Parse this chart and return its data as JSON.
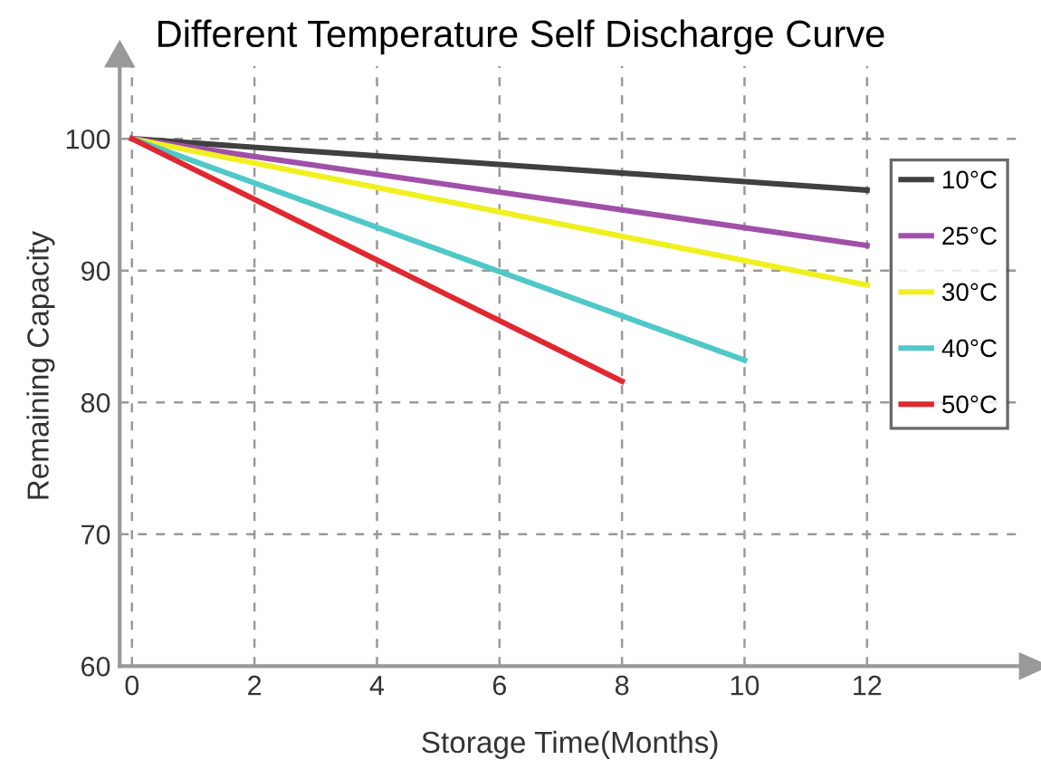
{
  "chart_data": {
    "type": "line",
    "title": "Different Temperature Self Discharge Curve",
    "xlabel": "Storage Time(Months)",
    "ylabel": "Remaining Capacity",
    "xlim": [
      -0.2,
      14.5
    ],
    "ylim": [
      60,
      105.5
    ],
    "xticks": [
      0,
      2,
      4,
      6,
      8,
      10,
      12
    ],
    "yticks": [
      60,
      70,
      80,
      90,
      100
    ],
    "grid": true,
    "legend": "right",
    "line_style": "solid",
    "marker": "none",
    "series": [
      {
        "name": "10°C",
        "color": "#404040",
        "x": [
          0,
          12
        ],
        "values": [
          100,
          96.1
        ]
      },
      {
        "name": "25°C",
        "color": "#a050a8",
        "x": [
          0,
          12
        ],
        "values": [
          100,
          91.9
        ]
      },
      {
        "name": "30°C",
        "color": "#f0f020",
        "x": [
          0,
          12
        ],
        "values": [
          100,
          88.9
        ]
      },
      {
        "name": "40°C",
        "color": "#50c8c8",
        "x": [
          0,
          10
        ],
        "values": [
          100,
          83.2
        ]
      },
      {
        "name": "50°C",
        "color": "#e02830",
        "x": [
          0,
          8
        ],
        "values": [
          100,
          81.6
        ]
      }
    ]
  }
}
